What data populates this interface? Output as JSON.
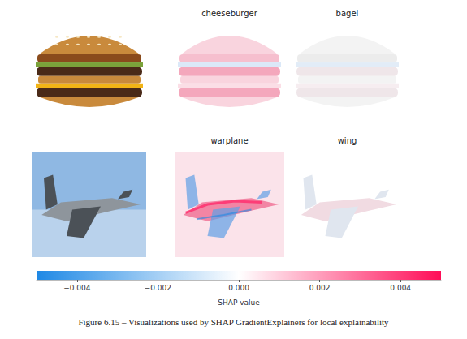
{
  "rows": [
    {
      "titles": [
        "cheeseburger",
        "bagel"
      ]
    },
    {
      "titles": [
        "warplane",
        "wing"
      ]
    }
  ],
  "chart_data": {
    "type": "colorbar",
    "xlabel": "SHAP value",
    "xlim": [
      -0.005,
      0.005
    ],
    "xticks": [
      {
        "value": -0.004,
        "label": "−0.004"
      },
      {
        "value": -0.002,
        "label": "−0.002"
      },
      {
        "value": 0,
        "label": "0.000"
      },
      0.002,
      0.004
    ],
    "colors": [
      "#1e88e5",
      "#ffffff",
      "#ff0d57"
    ]
  },
  "caption": "Figure 6.15 – Visualizations used by SHAP GradientExplainers for local explainability"
}
